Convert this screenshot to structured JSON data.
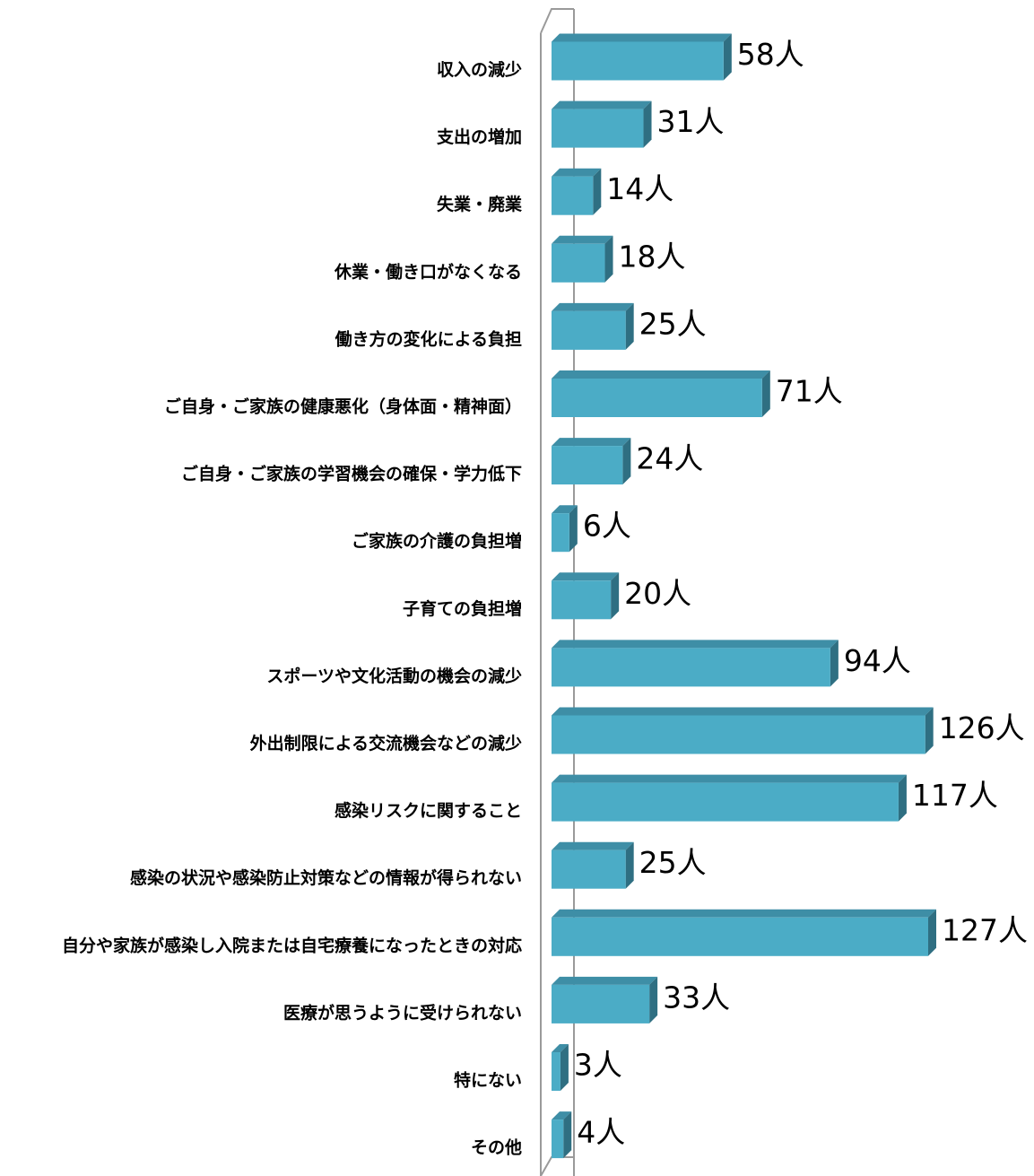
{
  "chart_data": {
    "type": "bar",
    "orientation": "horizontal",
    "style": "3d",
    "bar_color": "#4BACC6",
    "bar_top_color": "#3E8EA6",
    "bar_side_color": "#2F6F82",
    "axis_color": "#9A9A9A",
    "grid": false,
    "legend": "none",
    "xlim": [
      0,
      127
    ],
    "unit": "人",
    "categories": [
      "収入の減少",
      "支出の増加",
      "失業・廃業",
      "休業・働き口がなくなる",
      "働き方の変化による負担",
      "ご自身・ご家族の健康悪化（身体面・精神面）",
      "ご自身・ご家族の学習機会の確保・学力低下",
      "ご家族の介護の負担増",
      "子育ての負担増",
      "スポーツや文化活動の機会の減少",
      "外出制限による交流機会などの減少",
      "感染リスクに関すること",
      "感染の状況や感染防止対策などの情報が得られない",
      "自分や家族が感染し入院または自宅療養になったときの対応",
      "医療が思うように受けられない",
      "特にない",
      "その他"
    ],
    "values": [
      58,
      31,
      14,
      18,
      25,
      71,
      24,
      6,
      20,
      94,
      126,
      117,
      25,
      127,
      33,
      3,
      4
    ],
    "data_labels": [
      "58人",
      "31人",
      "14人",
      "18人",
      "25人",
      "71人",
      "24人",
      "6人",
      "20人",
      "94人",
      "126人",
      "117人",
      "25人",
      "127人",
      "33人",
      "3人",
      "4人"
    ]
  }
}
